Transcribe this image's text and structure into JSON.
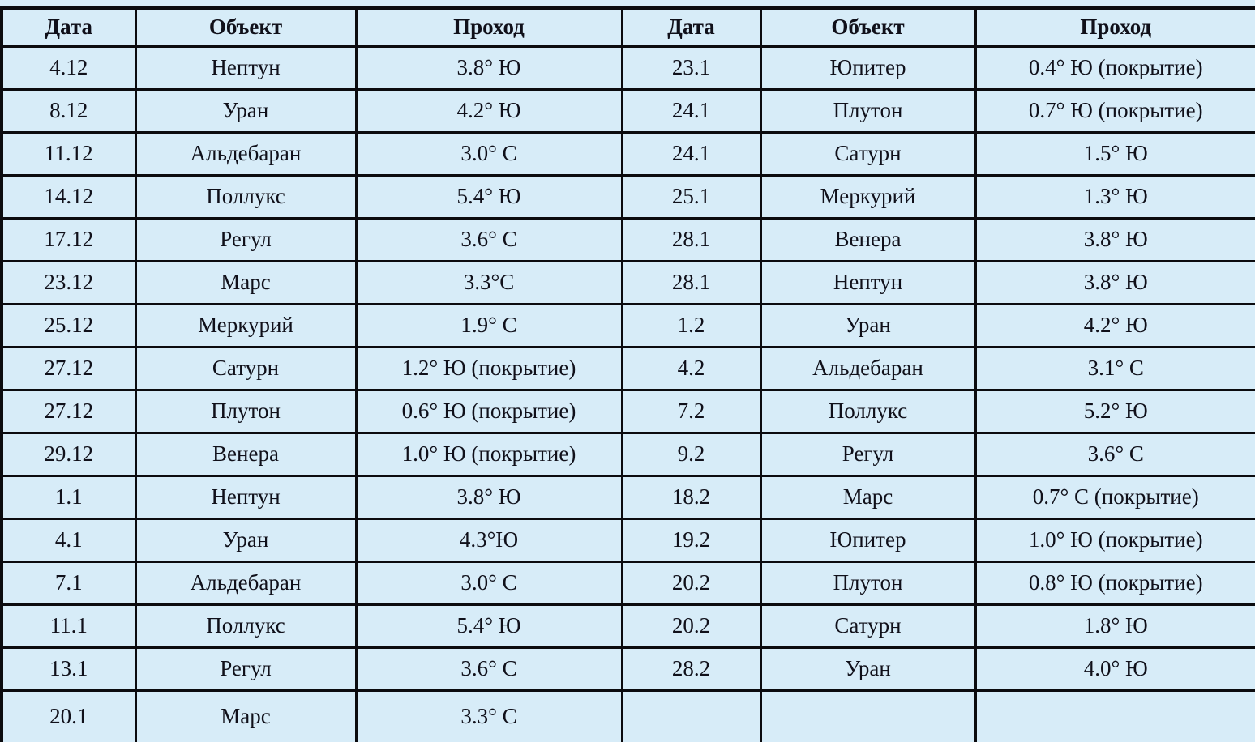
{
  "colors": {
    "background": "#d7ecf8",
    "cell_background": "#d7ecf8",
    "border": "#0b0b0f",
    "text": "#10101a"
  },
  "table": {
    "headers": [
      "Дата",
      "Объект",
      "Проход",
      "Дата",
      "Объект",
      "Проход"
    ],
    "rows": [
      [
        "4.12",
        "Нептун",
        "3.8° Ю",
        "23.1",
        "Юпитер",
        "0.4° Ю (покрытие)"
      ],
      [
        "8.12",
        "Уран",
        "4.2° Ю",
        "24.1",
        "Плутон",
        "0.7° Ю (покрытие)"
      ],
      [
        "11.12",
        "Альдебаран",
        "3.0° С",
        "24.1",
        "Сатурн",
        "1.5° Ю"
      ],
      [
        "14.12",
        "Поллукс",
        "5.4° Ю",
        "25.1",
        "Меркурий",
        "1.3° Ю"
      ],
      [
        "17.12",
        "Регул",
        "3.6° С",
        "28.1",
        "Венера",
        "3.8° Ю"
      ],
      [
        "23.12",
        "Марс",
        "3.3°С",
        "28.1",
        "Нептун",
        "3.8° Ю"
      ],
      [
        "25.12",
        "Меркурий",
        "1.9° С",
        "1.2",
        "Уран",
        "4.2° Ю"
      ],
      [
        "27.12",
        "Сатурн",
        "1.2° Ю (покрытие)",
        "4.2",
        "Альдебаран",
        "3.1° С"
      ],
      [
        "27.12",
        "Плутон",
        "0.6° Ю (покрытие)",
        "7.2",
        "Поллукс",
        "5.2° Ю"
      ],
      [
        "29.12",
        "Венера",
        "1.0° Ю (покрытие)",
        "9.2",
        "Регул",
        "3.6° С"
      ],
      [
        "1.1",
        "Нептун",
        "3.8° Ю",
        "18.2",
        "Марс",
        "0.7° С (покрытие)"
      ],
      [
        "4.1",
        "Уран",
        "4.3°Ю",
        "19.2",
        "Юпитер",
        "1.0° Ю (покрытие)"
      ],
      [
        "7.1",
        "Альдебаран",
        "3.0° С",
        "20.2",
        "Плутон",
        "0.8° Ю (покрытие)"
      ],
      [
        "11.1",
        "Поллукс",
        "5.4° Ю",
        "20.2",
        "Сатурн",
        "1.8° Ю"
      ],
      [
        "13.1",
        "Регул",
        "3.6° С",
        "28.2",
        "Уран",
        "4.0° Ю"
      ],
      [
        "20.1",
        "Марс",
        "3.3° С",
        "",
        "",
        ""
      ]
    ]
  }
}
